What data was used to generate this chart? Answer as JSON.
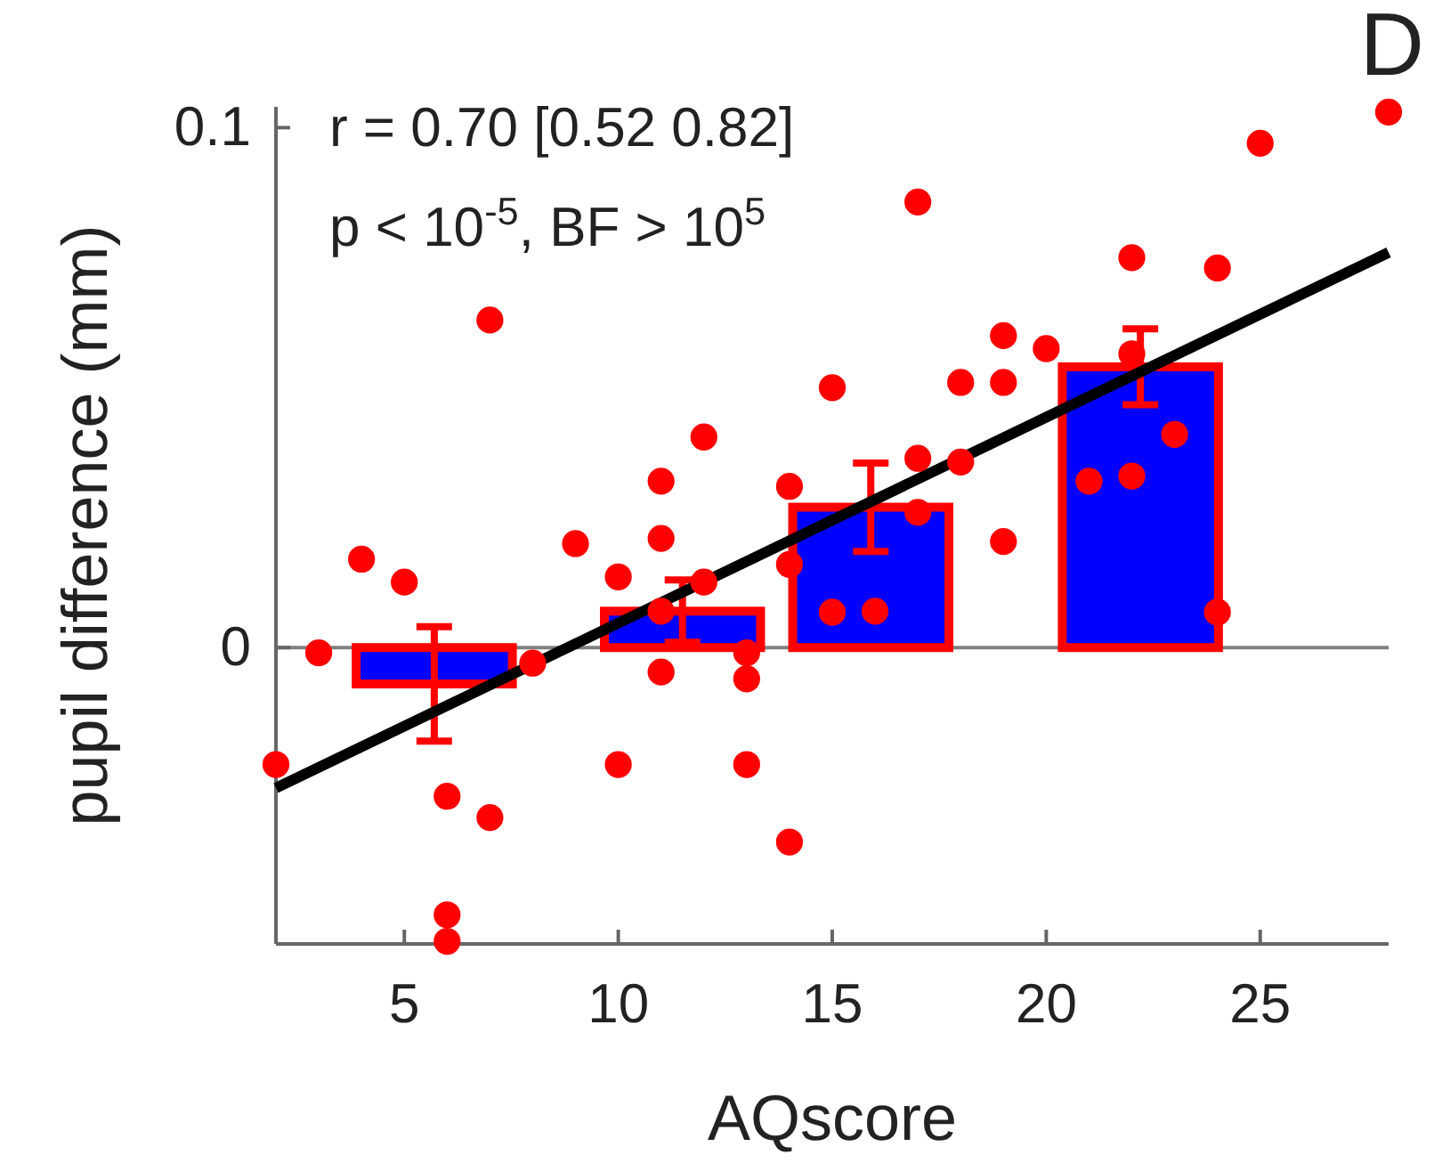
{
  "chart_data": {
    "type": "bar",
    "xlabel": "AQscore",
    "ylabel": "pupil difference (mm)",
    "xlim": [
      2,
      28
    ],
    "ylim": [
      -0.057,
      0.104
    ],
    "xticks": [
      5,
      10,
      15,
      20,
      25
    ],
    "yticks": [
      0,
      0.1
    ],
    "grid": false,
    "ref_lines": [
      {
        "axis": "y",
        "value": 0,
        "color": "#808080"
      }
    ],
    "annotations": [
      "r = 0.70 [0.52 0.82]",
      "p < 10$^{-5}$, BF > 10$^{5}$",
      "D"
    ],
    "series": [
      {
        "color": "#0000ff",
        "x": [
          5.7,
          11.5,
          15.9,
          22.2
        ],
        "values": [
          -0.007,
          0.007,
          0.027,
          0.054
        ],
        "errors": [
          0.011,
          0.006,
          0.0085,
          0.0073
        ]
      },
      {
        "type": "scatter",
        "color": "#ff0000",
        "marker": "circle",
        "x": [
          7,
          15,
          12,
          11,
          14,
          9,
          11,
          4,
          5,
          10,
          12,
          14,
          15,
          3,
          8,
          11,
          13,
          13,
          11,
          16,
          2,
          10,
          13,
          6,
          7,
          14,
          6,
          6,
          28,
          25,
          17,
          22,
          24,
          19,
          20,
          22,
          18,
          19,
          23,
          17,
          18,
          21,
          22,
          17,
          19,
          24
        ],
        "values": [
          0.063,
          0.05,
          0.0405,
          0.032,
          0.031,
          0.02,
          0.021,
          0.017,
          0.0126,
          0.0136,
          0.0126,
          0.016,
          0.0068,
          -0.001,
          -0.003,
          -0.0047,
          -0.006,
          -0.001,
          0.007,
          0.007,
          -0.0225,
          -0.0225,
          -0.0225,
          -0.0286,
          -0.0327,
          -0.0374,
          -0.0514,
          -0.0565,
          0.103,
          0.097,
          0.0857,
          0.075,
          0.073,
          0.06,
          0.0575,
          0.0565,
          0.051,
          0.051,
          0.041,
          0.0364,
          0.0357,
          0.032,
          0.033,
          0.026,
          0.0204,
          0.0068
        ]
      },
      {
        "type": "line",
        "color": "#000000",
        "x": [
          2,
          28
        ],
        "values": [
          -0.027,
          0.076
        ]
      }
    ]
  }
}
